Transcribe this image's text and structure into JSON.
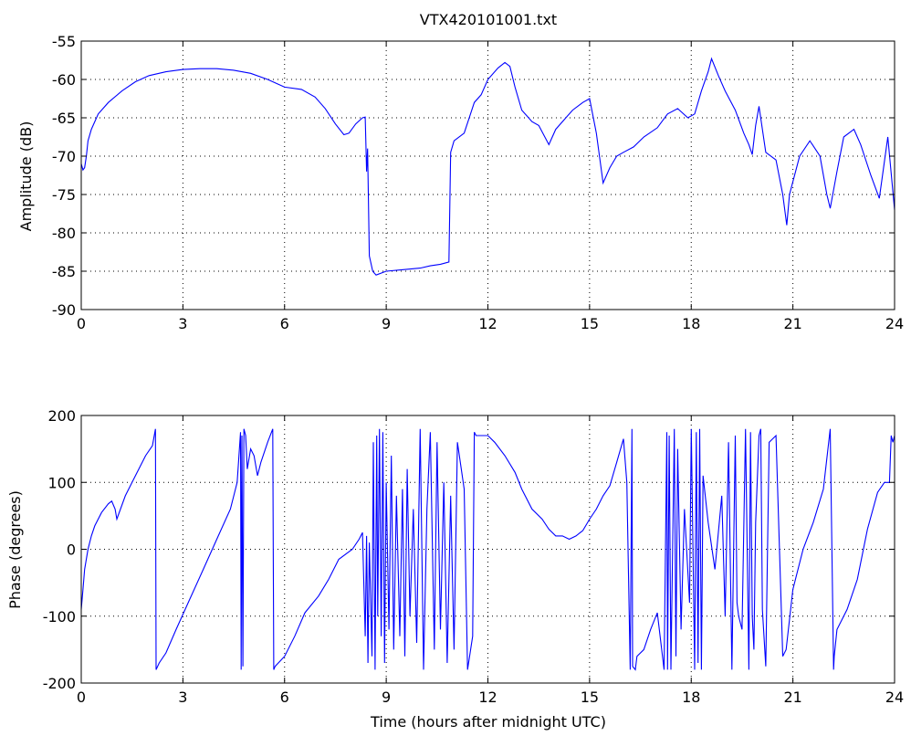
{
  "figure": {
    "title": "VTX420101001.txt",
    "line_color": "#0000ff",
    "background": "#ffffff"
  },
  "chart_data": [
    {
      "type": "line",
      "id": "amplitude",
      "title": "VTX420101001.txt",
      "xlabel": "",
      "ylabel": "Amplitude (dB)",
      "xlim": [
        0,
        24
      ],
      "ylim": [
        -90,
        -55
      ],
      "xticks": [
        0,
        3,
        6,
        9,
        12,
        15,
        18,
        21,
        24
      ],
      "yticks": [
        -90,
        -85,
        -80,
        -75,
        -70,
        -65,
        -60,
        -55
      ],
      "grid": true,
      "series": [
        {
          "color": "#0000ff",
          "x": [
            0,
            0.05,
            0.1,
            0.15,
            0.2,
            0.3,
            0.5,
            0.8,
            1.2,
            1.6,
            2.0,
            2.5,
            3.0,
            3.5,
            4.0,
            4.5,
            5.0,
            5.5,
            5.8,
            6.0,
            6.5,
            6.9,
            7.2,
            7.5,
            7.75,
            7.9,
            8.1,
            8.3,
            8.38,
            8.42,
            8.45,
            8.5,
            8.6,
            8.7,
            9.0,
            9.5,
            10.0,
            10.3,
            10.6,
            10.85,
            10.9,
            11.0,
            11.3,
            11.6,
            11.8,
            12.0,
            12.3,
            12.5,
            12.65,
            12.8,
            13.0,
            13.3,
            13.5,
            13.8,
            14.0,
            14.3,
            14.5,
            14.8,
            15.0,
            15.2,
            15.4,
            15.6,
            15.8,
            16.0,
            16.3,
            16.6,
            17.0,
            17.3,
            17.6,
            17.9,
            18.1,
            18.3,
            18.5,
            18.6,
            18.8,
            19.0,
            19.3,
            19.55,
            19.7,
            19.8,
            19.9,
            20.0,
            20.2,
            20.5,
            20.7,
            20.82,
            20.9,
            21.2,
            21.5,
            21.8,
            22.0,
            22.1,
            22.3,
            22.5,
            22.8,
            23.0,
            23.3,
            23.55,
            23.8,
            24.0
          ],
          "y": [
            -71,
            -71.8,
            -71.5,
            -70,
            -68,
            -66.5,
            -64.5,
            -63,
            -61.5,
            -60.3,
            -59.5,
            -59.0,
            -58.7,
            -58.6,
            -58.6,
            -58.8,
            -59.2,
            -60.0,
            -60.6,
            -61.0,
            -61.3,
            -62.3,
            -63.8,
            -65.8,
            -67.2,
            -67.0,
            -65.8,
            -65.0,
            -64.9,
            -72.0,
            -69.0,
            -83.0,
            -85.0,
            -85.5,
            -85.0,
            -84.8,
            -84.6,
            -84.3,
            -84.1,
            -83.8,
            -69.5,
            -68.0,
            -67.0,
            -63.0,
            -62.0,
            -60.0,
            -58.5,
            -57.8,
            -58.3,
            -61.0,
            -64.0,
            -65.5,
            -66.0,
            -68.5,
            -66.5,
            -65.0,
            -64.0,
            -63.0,
            -62.5,
            -67.0,
            -73.5,
            -71.5,
            -70.0,
            -69.5,
            -68.8,
            -67.5,
            -66.3,
            -64.5,
            -63.8,
            -65.0,
            -64.5,
            -61.5,
            -59.0,
            -57.3,
            -59.5,
            -61.5,
            -64.0,
            -67.0,
            -68.5,
            -69.8,
            -66.0,
            -63.5,
            -69.5,
            -70.5,
            -75.0,
            -79.0,
            -75.0,
            -70.0,
            -68.0,
            -70.0,
            -75.0,
            -76.8,
            -72.0,
            -67.5,
            -66.5,
            -68.5,
            -72.5,
            -75.5,
            -67.5,
            -77.0
          ]
        }
      ]
    },
    {
      "type": "line",
      "id": "phase",
      "title": "",
      "xlabel": "Time (hours after midnight UTC)",
      "ylabel": "Phase (degrees)",
      "xlim": [
        0,
        24
      ],
      "ylim": [
        -200,
        200
      ],
      "xticks": [
        0,
        3,
        6,
        9,
        12,
        15,
        18,
        21,
        24
      ],
      "yticks": [
        -200,
        -100,
        0,
        100,
        200
      ],
      "grid": true,
      "series": [
        {
          "color": "#0000ff",
          "x": [
            0,
            0.05,
            0.1,
            0.2,
            0.3,
            0.4,
            0.6,
            0.8,
            0.9,
            1.0,
            1.05,
            1.3,
            1.6,
            1.9,
            2.1,
            2.19,
            2.21,
            2.3,
            2.5,
            2.8,
            3.2,
            3.6,
            4.0,
            4.4,
            4.6,
            4.7,
            4.72,
            4.74,
            4.77,
            4.8,
            4.85,
            4.9,
            5.0,
            5.1,
            5.2,
            5.3,
            5.5,
            5.65,
            5.68,
            5.72,
            6.0,
            6.3,
            6.6,
            7.0,
            7.3,
            7.6,
            8.0,
            8.2,
            8.3,
            8.38,
            8.42,
            8.46,
            8.5,
            8.58,
            8.62,
            8.67,
            8.72,
            8.75,
            8.8,
            8.85,
            8.9,
            8.95,
            9.0,
            9.08,
            9.15,
            9.22,
            9.3,
            9.4,
            9.48,
            9.55,
            9.62,
            9.7,
            9.8,
            9.9,
            10.0,
            10.1,
            10.2,
            10.3,
            10.42,
            10.5,
            10.6,
            10.7,
            10.8,
            10.9,
            11.0,
            11.1,
            11.3,
            11.4,
            11.55,
            11.6,
            11.65,
            12.0,
            12.2,
            12.5,
            12.8,
            13.0,
            13.3,
            13.6,
            13.8,
            14.0,
            14.2,
            14.4,
            14.6,
            14.8,
            15.0,
            15.2,
            15.4,
            15.6,
            15.8,
            16.0,
            16.1,
            16.2,
            16.25,
            16.27,
            16.35,
            16.4,
            16.6,
            16.8,
            17.0,
            17.2,
            17.28,
            17.3,
            17.35,
            17.4,
            17.5,
            17.55,
            17.6,
            17.7,
            17.8,
            17.95,
            18.0,
            18.1,
            18.15,
            18.2,
            18.25,
            18.3,
            18.35,
            18.5,
            18.7,
            18.9,
            19.0,
            19.1,
            19.2,
            19.3,
            19.35,
            19.4,
            19.5,
            19.6,
            19.7,
            19.75,
            19.8,
            19.85,
            19.9,
            20.0,
            20.05,
            20.1,
            20.2,
            20.3,
            20.5,
            20.7,
            20.8,
            21.0,
            21.3,
            21.6,
            21.9,
            22.1,
            22.2,
            22.22,
            22.3,
            22.6,
            22.9,
            23.2,
            23.5,
            23.7,
            23.85,
            23.9,
            23.95,
            24.0
          ],
          "y": [
            -90,
            -60,
            -30,
            0,
            20,
            35,
            55,
            68,
            72,
            60,
            45,
            80,
            110,
            140,
            155,
            180,
            -180,
            -170,
            -155,
            -120,
            -75,
            -30,
            15,
            60,
            100,
            175,
            -180,
            170,
            -175,
            180,
            170,
            120,
            150,
            140,
            110,
            130,
            160,
            180,
            -180,
            -175,
            -160,
            -130,
            -95,
            -70,
            -45,
            -15,
            0,
            15,
            25,
            -130,
            20,
            -170,
            10,
            -160,
            160,
            -180,
            170,
            -100,
            180,
            -130,
            175,
            -170,
            100,
            -120,
            140,
            -150,
            80,
            -130,
            90,
            -160,
            120,
            -100,
            60,
            -140,
            180,
            -180,
            60,
            175,
            -150,
            160,
            -120,
            100,
            -170,
            80,
            -150,
            160,
            90,
            -180,
            -130,
            175,
            170,
            170,
            160,
            140,
            115,
            90,
            60,
            45,
            30,
            20,
            20,
            15,
            20,
            28,
            45,
            60,
            80,
            95,
            130,
            165,
            100,
            -180,
            180,
            -175,
            -180,
            -160,
            -150,
            -120,
            -95,
            -180,
            175,
            -180,
            170,
            -180,
            180,
            -160,
            150,
            -120,
            60,
            -80,
            180,
            -180,
            175,
            -170,
            180,
            -180,
            110,
            40,
            -30,
            80,
            -100,
            160,
            -180,
            170,
            -80,
            -100,
            -120,
            180,
            -180,
            175,
            -100,
            -150,
            40,
            170,
            180,
            -90,
            -175,
            160,
            170,
            -160,
            -150,
            -60,
            0,
            40,
            90,
            180,
            -180,
            -160,
            -120,
            -90,
            -45,
            30,
            85,
            100,
            100,
            170,
            160,
            170
          ]
        }
      ]
    }
  ]
}
